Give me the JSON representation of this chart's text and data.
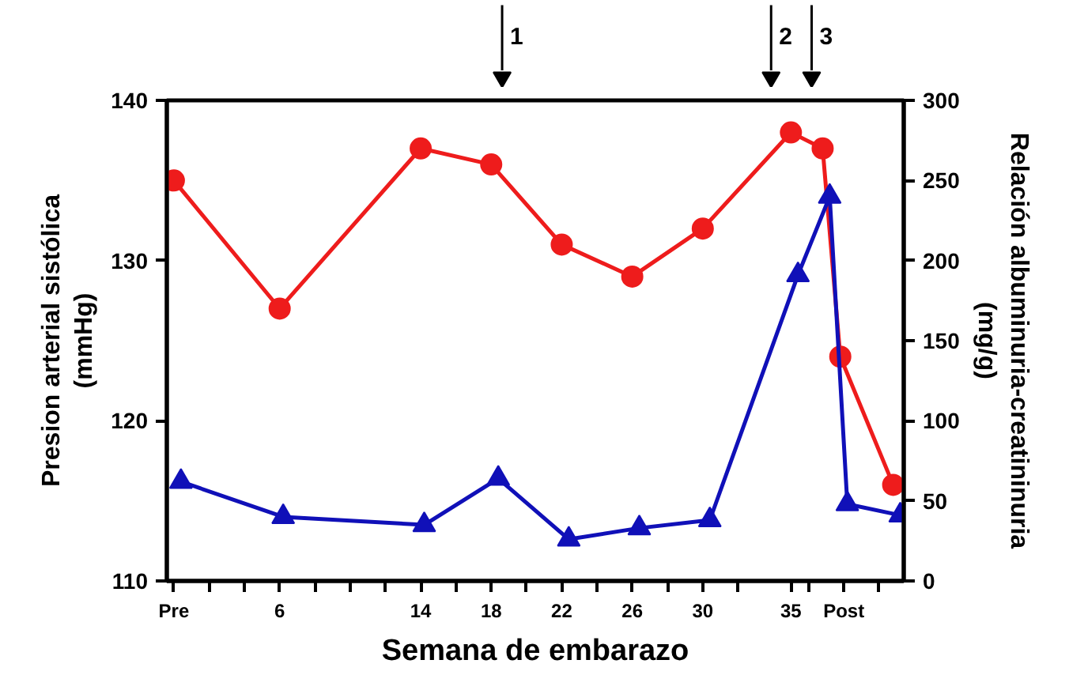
{
  "chart_data": {
    "type": "line",
    "xlabel": "Semana de embarazo",
    "ylabel": "Presion arterial sistólica\n(mmHg)",
    "y2label": "Relación albuminuria-creatininuria\n(mg/g)",
    "xlim": [
      -0.4,
      41.4
    ],
    "xticks": [
      {
        "value": 0,
        "label": "Pre"
      },
      {
        "value": 2,
        "label": null
      },
      {
        "value": 4,
        "label": null
      },
      6,
      {
        "value": 8,
        "label": null
      },
      {
        "value": 10,
        "label": null
      },
      {
        "value": 12,
        "label": null
      },
      14,
      {
        "value": 16,
        "label": null
      },
      18,
      {
        "value": 20,
        "label": null
      },
      22,
      {
        "value": 24,
        "label": null
      },
      26,
      {
        "value": 28,
        "label": null
      },
      30,
      {
        "value": 32,
        "label": null
      },
      35,
      {
        "value": 36,
        "label": null
      },
      {
        "value": 38,
        "label": "Post"
      },
      {
        "value": 40,
        "label": null
      }
    ],
    "ylim": [
      110,
      140
    ],
    "yticks": [
      110,
      120,
      130,
      140
    ],
    "y2lim": [
      0,
      300
    ],
    "y2ticks": [
      0,
      50,
      100,
      150,
      200,
      250,
      300
    ],
    "grid": false,
    "series": [
      {
        "color": "#ee1c1c",
        "marker": "circle",
        "x": [
          0,
          6,
          14,
          18,
          22,
          26,
          30,
          35,
          36.8,
          37.8,
          40.8
        ],
        "values": [
          135,
          127,
          137,
          136,
          131,
          129,
          132,
          138,
          137,
          124,
          116
        ]
      },
      {
        "color": "#1010b8",
        "marker": "triangle",
        "axis": "y2",
        "x": [
          0.4,
          6.2,
          14.2,
          18.4,
          22.4,
          26.4,
          30.4,
          35.4,
          37.2,
          38.2,
          41.2
        ],
        "values": [
          62,
          40,
          35,
          64,
          26,
          33,
          38,
          191,
          240,
          48,
          41
        ]
      }
    ],
    "annotations": [
      "1",
      "2",
      "3"
    ]
  }
}
